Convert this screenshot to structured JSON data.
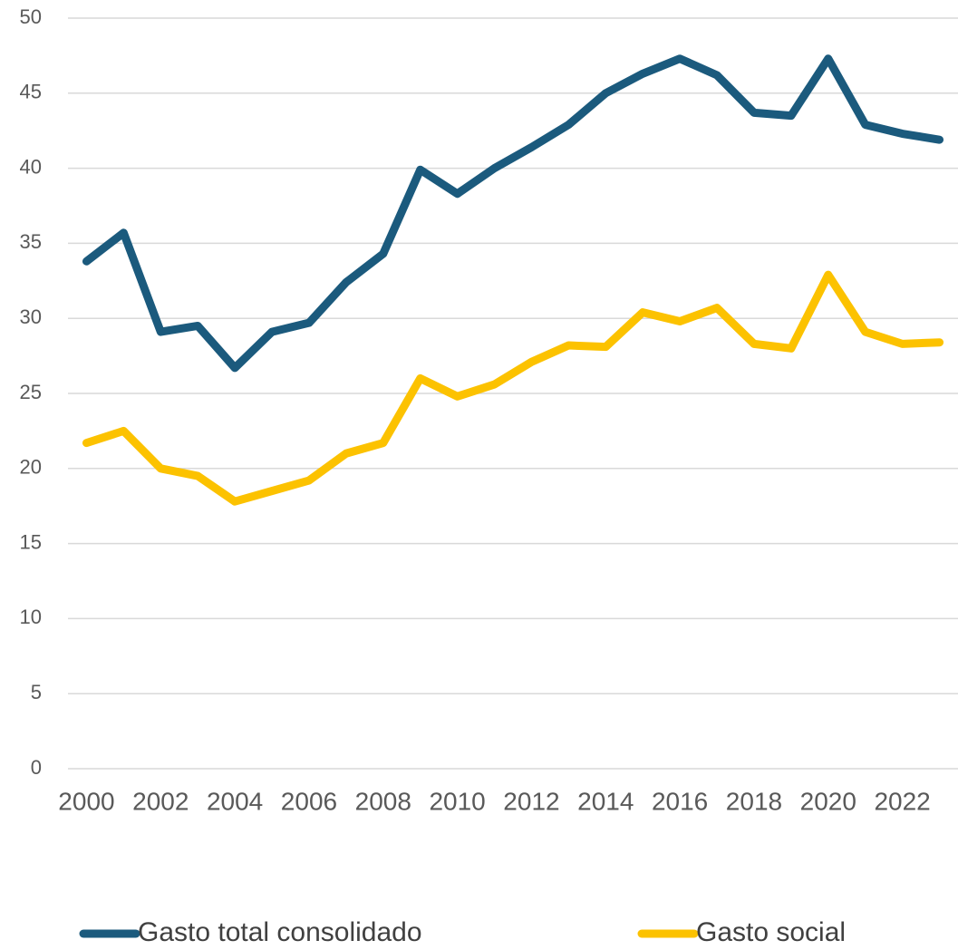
{
  "chart_data": {
    "type": "line",
    "x": [
      2000,
      2001,
      2002,
      2003,
      2004,
      2005,
      2006,
      2007,
      2008,
      2009,
      2010,
      2011,
      2012,
      2013,
      2014,
      2015,
      2016,
      2017,
      2018,
      2019,
      2020,
      2021,
      2022,
      2023
    ],
    "series": [
      {
        "name": "Gasto total consolidado",
        "color": "#1b5a7d",
        "values": [
          33.8,
          35.7,
          29.1,
          29.5,
          26.7,
          29.1,
          29.7,
          32.4,
          34.3,
          39.9,
          38.3,
          40.0,
          41.4,
          42.9,
          45.0,
          46.3,
          47.3,
          46.2,
          43.7,
          43.5,
          47.3,
          42.9,
          42.3,
          41.9
        ]
      },
      {
        "name": "Gasto social",
        "color": "#fcc200",
        "values": [
          21.7,
          22.5,
          20.0,
          19.5,
          17.8,
          18.5,
          19.2,
          21.0,
          21.7,
          26.0,
          24.8,
          25.6,
          27.1,
          28.2,
          28.1,
          30.4,
          29.8,
          30.7,
          28.3,
          28.0,
          32.9,
          29.1,
          28.3,
          28.4
        ]
      }
    ],
    "xlim": [
      1999.5,
      2023.5
    ],
    "xticks": [
      2000,
      2002,
      2004,
      2006,
      2008,
      2010,
      2012,
      2014,
      2016,
      2018,
      2020,
      2022
    ],
    "ylim": [
      0,
      50
    ],
    "yticks": [
      0,
      5,
      10,
      15,
      20,
      25,
      30,
      35,
      40,
      45,
      50
    ],
    "grid": true,
    "legend": "bottom"
  }
}
